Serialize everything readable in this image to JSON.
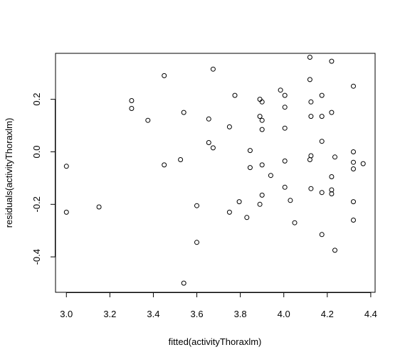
{
  "chart_data": {
    "type": "scatter",
    "title": "",
    "xlabel": "fitted(activityThoraxlm)",
    "ylabel": "residuals(activityThoraxlm)",
    "xlim": [
      2.95,
      4.42
    ],
    "ylim": [
      -0.535,
      0.375
    ],
    "xticks": [
      "3.0",
      "3.2",
      "3.4",
      "3.6",
      "3.8",
      "4.0",
      "4.2",
      "4.4"
    ],
    "yticks": [
      "-0.4",
      "-0.2",
      "0.0",
      "0.2"
    ],
    "xtick_values": [
      3.0,
      3.2,
      3.4,
      3.6,
      3.8,
      4.0,
      4.2,
      4.4
    ],
    "ytick_values": [
      -0.4,
      -0.2,
      0.0,
      0.2
    ],
    "grid": false,
    "marker": "open-circle",
    "points": [
      [
        3.0,
        -0.055
      ],
      [
        3.0,
        -0.23
      ],
      [
        3.15,
        -0.21
      ],
      [
        3.3,
        0.195
      ],
      [
        3.3,
        0.165
      ],
      [
        3.375,
        0.12
      ],
      [
        3.45,
        0.29
      ],
      [
        3.45,
        -0.05
      ],
      [
        3.525,
        -0.03
      ],
      [
        3.54,
        0.15
      ],
      [
        3.54,
        -0.5
      ],
      [
        3.6,
        -0.205
      ],
      [
        3.6,
        -0.345
      ],
      [
        3.655,
        0.125
      ],
      [
        3.655,
        0.035
      ],
      [
        3.675,
        0.015
      ],
      [
        3.675,
        0.315
      ],
      [
        3.75,
        0.095
      ],
      [
        3.75,
        -0.23
      ],
      [
        3.775,
        0.215
      ],
      [
        3.795,
        -0.19
      ],
      [
        3.83,
        -0.25
      ],
      [
        3.845,
        0.005
      ],
      [
        3.845,
        -0.06
      ],
      [
        3.89,
        0.2
      ],
      [
        3.89,
        0.135
      ],
      [
        3.89,
        -0.2
      ],
      [
        3.9,
        0.19
      ],
      [
        3.9,
        0.12
      ],
      [
        3.9,
        0.085
      ],
      [
        3.9,
        -0.05
      ],
      [
        3.9,
        -0.165
      ],
      [
        3.94,
        -0.09
      ],
      [
        3.985,
        0.235
      ],
      [
        4.005,
        0.215
      ],
      [
        4.005,
        0.17
      ],
      [
        4.005,
        0.09
      ],
      [
        4.005,
        -0.035
      ],
      [
        4.005,
        -0.135
      ],
      [
        4.03,
        -0.185
      ],
      [
        4.05,
        -0.27
      ],
      [
        4.12,
        0.36
      ],
      [
        4.12,
        0.275
      ],
      [
        4.125,
        0.19
      ],
      [
        4.125,
        0.135
      ],
      [
        4.125,
        -0.015
      ],
      [
        4.12,
        -0.03
      ],
      [
        4.125,
        -0.14
      ],
      [
        4.175,
        0.215
      ],
      [
        4.175,
        0.135
      ],
      [
        4.175,
        0.04
      ],
      [
        4.175,
        -0.155
      ],
      [
        4.175,
        -0.315
      ],
      [
        4.22,
        0.345
      ],
      [
        4.22,
        0.15
      ],
      [
        4.22,
        -0.095
      ],
      [
        4.22,
        -0.145
      ],
      [
        4.22,
        -0.16
      ],
      [
        4.235,
        -0.02
      ],
      [
        4.235,
        -0.375
      ],
      [
        4.32,
        0.25
      ],
      [
        4.32,
        0.0
      ],
      [
        4.32,
        -0.04
      ],
      [
        4.32,
        -0.065
      ],
      [
        4.32,
        -0.19
      ],
      [
        4.32,
        -0.26
      ],
      [
        4.365,
        -0.045
      ]
    ]
  }
}
